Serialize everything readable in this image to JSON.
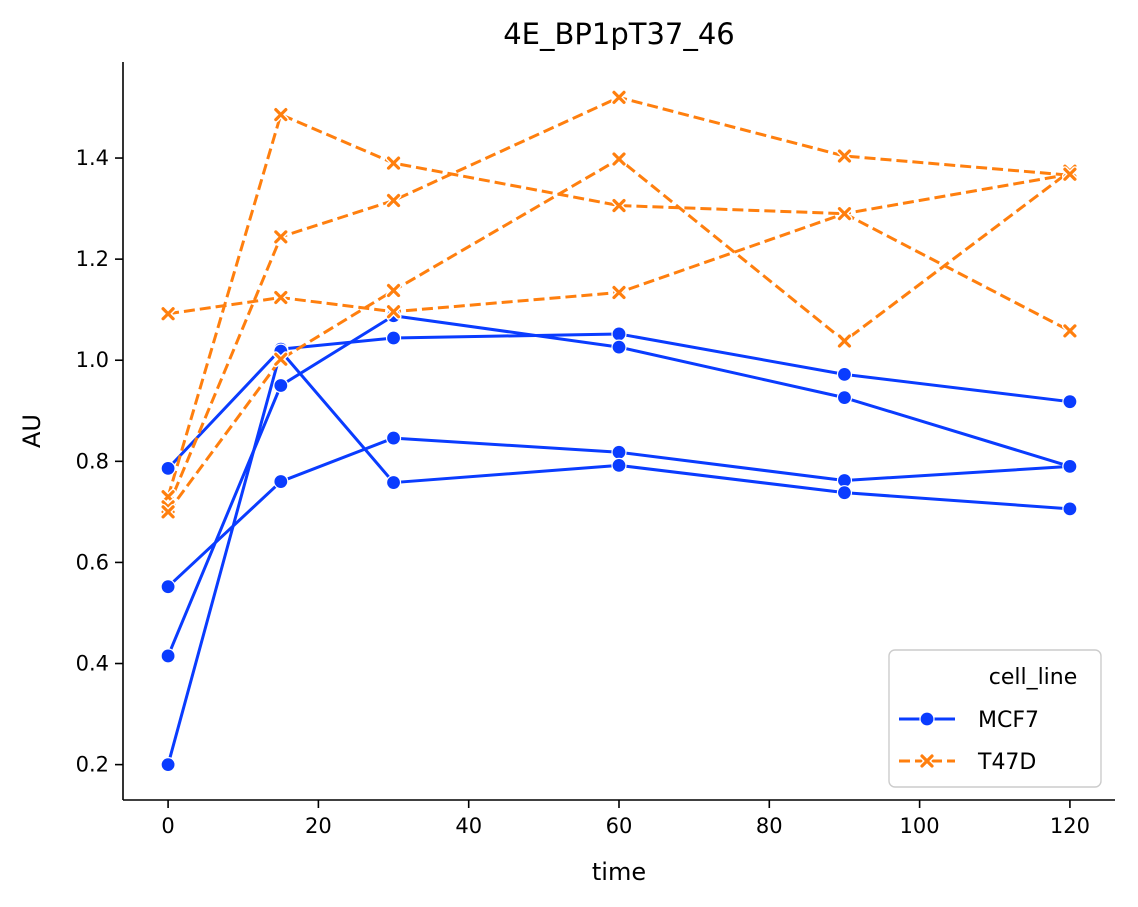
{
  "chart_data": {
    "type": "line",
    "title": "4E_BP1pT37_46",
    "xlabel": "time",
    "ylabel": "AU",
    "xlim": [
      -6,
      126
    ],
    "ylim": [
      0.13,
      1.59
    ],
    "xticks": [
      0,
      20,
      40,
      60,
      80,
      100,
      120
    ],
    "yticks": [
      0.2,
      0.4,
      0.6,
      0.8,
      1.0,
      1.2,
      1.4
    ],
    "xtick_labels": [
      "0",
      "20",
      "40",
      "60",
      "80",
      "100",
      "120"
    ],
    "ytick_labels": [
      "0.2",
      "0.4",
      "0.6",
      "0.8",
      "1.0",
      "1.2",
      "1.4"
    ],
    "grid": false,
    "legend": {
      "title": "cell_line",
      "placement": "bottom-right",
      "entries": [
        "MCF7",
        "T47D"
      ]
    },
    "x": [
      0,
      15,
      30,
      60,
      90,
      120
    ],
    "groups": [
      {
        "legend_label": "MCF7",
        "color": "#0a3cff",
        "marker": "circle",
        "dashed": false,
        "lines": [
          [
            0.786,
            1.022,
            1.044,
            1.052,
            0.972,
            0.918
          ],
          [
            0.552,
            0.76,
            0.846,
            0.818,
            0.762,
            0.79
          ],
          [
            0.415,
            0.95,
            1.088,
            1.026,
            0.926,
            0.79
          ],
          [
            0.2,
            1.018,
            0.758,
            0.792,
            0.738,
            0.706
          ]
        ]
      },
      {
        "legend_label": "T47D",
        "color": "#ff7f0e",
        "marker": "x",
        "dashed": true,
        "lines": [
          [
            0.73,
            1.486,
            1.39,
            1.306,
            1.29,
            1.058
          ],
          [
            0.71,
            1.244,
            1.316,
            1.52,
            1.404,
            1.366
          ],
          [
            0.7,
            1.002,
            1.138,
            1.398,
            1.038,
            1.374
          ],
          [
            1.092,
            1.124,
            1.096,
            1.134,
            1.29,
            1.368
          ]
        ]
      }
    ]
  }
}
